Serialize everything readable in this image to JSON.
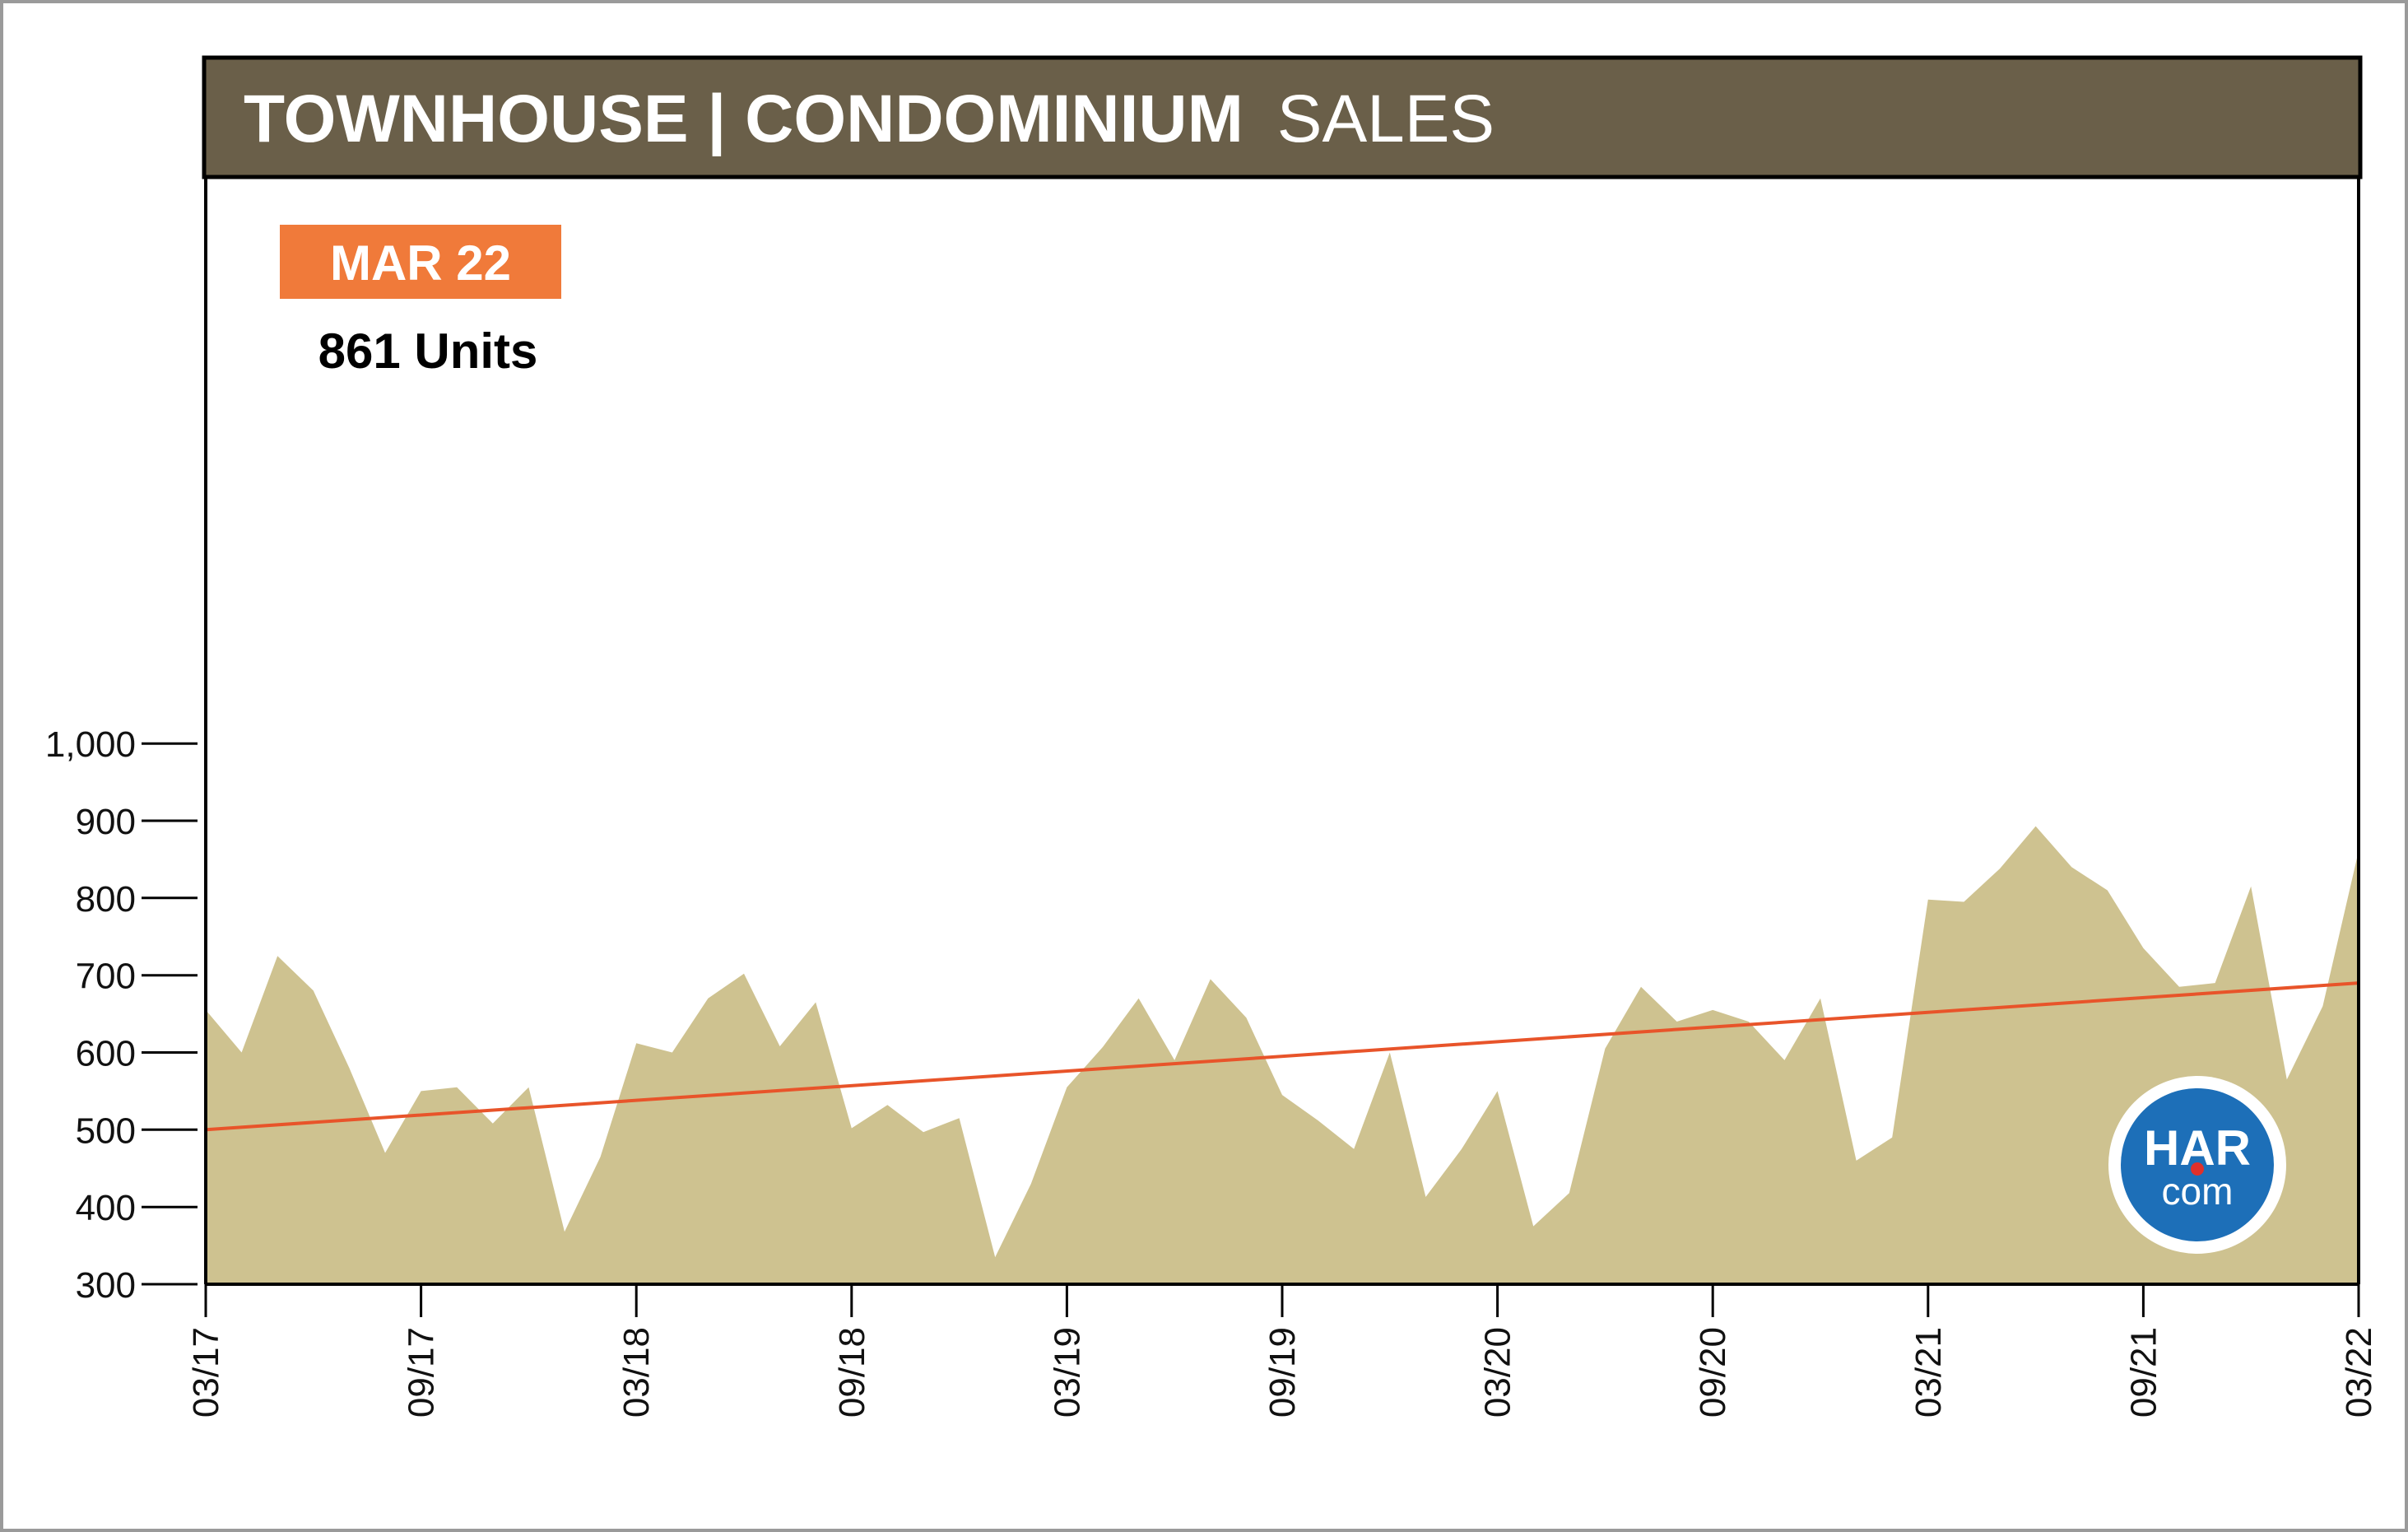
{
  "header": {
    "title_bold": "TOWNHOUSE | CONDOMINIUM",
    "title_light": "SALES"
  },
  "callout": {
    "month_label": "MAR 22",
    "value_label": "861 Units"
  },
  "logo": {
    "top_text": "HAR",
    "bottom_text": "com"
  },
  "colors": {
    "header_bg": "#6a5f49",
    "area_fill": "#cec290",
    "trend_line": "#e8542a",
    "badge_bg": "#f07a3a",
    "logo_blue": "#1d6fb8",
    "logo_dot": "#e0302a"
  },
  "chart_data": {
    "type": "area",
    "title": "TOWNHOUSE | CONDOMINIUM SALES",
    "x": [
      "03/17",
      "04/17",
      "05/17",
      "06/17",
      "07/17",
      "08/17",
      "09/17",
      "10/17",
      "11/17",
      "12/17",
      "01/18",
      "02/18",
      "03/18",
      "04/18",
      "05/18",
      "06/18",
      "07/18",
      "08/18",
      "09/18",
      "10/18",
      "11/18",
      "12/18",
      "01/19",
      "02/19",
      "03/19",
      "04/19",
      "05/19",
      "06/19",
      "07/19",
      "08/19",
      "09/19",
      "10/19",
      "11/19",
      "12/19",
      "01/20",
      "02/20",
      "03/20",
      "04/20",
      "05/20",
      "06/20",
      "07/20",
      "08/20",
      "09/20",
      "10/20",
      "11/20",
      "12/20",
      "01/21",
      "02/21",
      "03/21",
      "04/21",
      "05/21",
      "06/21",
      "07/21",
      "08/21",
      "09/21",
      "10/21",
      "11/21",
      "12/21",
      "01/22",
      "02/22",
      "03/22"
    ],
    "series": [
      {
        "values": [
          655,
          600,
          725,
          680,
          580,
          470,
          550,
          555,
          508,
          555,
          368,
          465,
          612,
          600,
          670,
          702,
          608,
          665,
          502,
          532,
          497,
          515,
          335,
          430,
          555,
          607,
          670,
          590,
          695,
          645,
          545,
          512,
          475,
          600,
          413,
          475,
          550,
          375,
          418,
          605,
          685,
          640,
          655,
          640,
          590,
          670,
          460,
          490,
          798,
          795,
          838,
          893,
          840,
          810,
          735,
          685,
          690,
          815,
          565,
          660,
          861
        ]
      }
    ],
    "trend": {
      "start": 500,
      "end": 690
    },
    "ylim": [
      300,
      1070
    ],
    "yticks": [
      300,
      400,
      500,
      600,
      700,
      800,
      900,
      1000
    ],
    "ytick_labels": [
      "300",
      "400",
      "500",
      "600",
      "700",
      "800",
      "900",
      "1,000"
    ],
    "xtick_labels": [
      "03/17",
      "09/17",
      "03/18",
      "09/18",
      "03/19",
      "09/19",
      "03/20",
      "09/20",
      "03/21",
      "09/21",
      "03/22"
    ],
    "xlabel": "",
    "ylabel": "",
    "grid": false,
    "legend": "none"
  }
}
